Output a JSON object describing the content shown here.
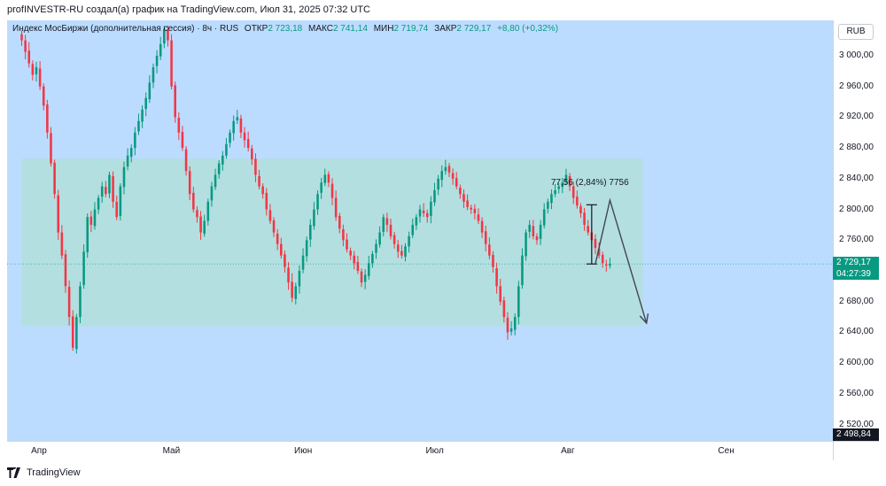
{
  "caption": "profINVESTR-RU создал(а) график на TradingView.com, Июл 31, 2025 07:32 UTC",
  "legend": {
    "symbol": "Индекс МосБиржи (дополнительная сессия) · 8ч · RUS",
    "open_label": "ОТКР",
    "open": "2 723,18",
    "high_label": "МАКС",
    "high": "2 741,14",
    "low_label": "МИН",
    "low": "2 719,74",
    "close_label": "ЗАКР",
    "close": "2 729,17",
    "change": "+8,80 (+0,32%)"
  },
  "currency": "RUB",
  "last_price": {
    "value": "2 729,17",
    "countdown": "04:27:39"
  },
  "bottom_price": "2 498,84",
  "measure_text": "77,56 (2,84%) 7756",
  "footer_brand": "TradingView",
  "colors": {
    "up": "#089981",
    "down": "#f23645",
    "background": "#bcdcff",
    "range_box": "#b2dfdb",
    "last_price": "#089981"
  },
  "chart_data": {
    "type": "candlestick",
    "title": "",
    "ylim": [
      2498.84,
      3046
    ],
    "y_ticks": [
      "3 000,00",
      "2 960,00",
      "2 920,00",
      "2 880,00",
      "2 840,00",
      "2 800,00",
      "2 760,00",
      "2 720,00",
      "2 680,00",
      "2 640,00",
      "2 600,00",
      "2 560,00",
      "2 520,00"
    ],
    "y_tick_values": [
      3000,
      2960,
      2920,
      2880,
      2840,
      2800,
      2760,
      2720,
      2680,
      2640,
      2600,
      2560,
      2520
    ],
    "x_ticks": [
      "Апр",
      "Май",
      "Июн",
      "Июл",
      "Авг",
      "Сен"
    ],
    "x_tick_index": [
      5,
      41,
      77,
      113,
      150,
      193
    ],
    "x_range": [
      -4,
      222
    ],
    "closes": [
      3020,
      3005,
      2990,
      2975,
      2985,
      2960,
      2935,
      2900,
      2860,
      2820,
      2770,
      2740,
      2700,
      2660,
      2620,
      2660,
      2700,
      2745,
      2790,
      2780,
      2800,
      2815,
      2830,
      2820,
      2845,
      2810,
      2790,
      2830,
      2855,
      2870,
      2880,
      2900,
      2915,
      2930,
      2945,
      2965,
      2985,
      3000,
      3015,
      3035,
      3020,
      2960,
      2920,
      2900,
      2880,
      2850,
      2820,
      2800,
      2790,
      2770,
      2785,
      2810,
      2830,
      2845,
      2860,
      2870,
      2885,
      2900,
      2915,
      2920,
      2900,
      2890,
      2880,
      2865,
      2845,
      2830,
      2820,
      2800,
      2785,
      2770,
      2755,
      2740,
      2725,
      2705,
      2685,
      2700,
      2720,
      2740,
      2760,
      2780,
      2800,
      2820,
      2835,
      2845,
      2835,
      2815,
      2790,
      2775,
      2760,
      2748,
      2740,
      2730,
      2720,
      2705,
      2715,
      2730,
      2742,
      2755,
      2770,
      2790,
      2780,
      2765,
      2755,
      2745,
      2740,
      2752,
      2765,
      2780,
      2790,
      2800,
      2795,
      2790,
      2810,
      2825,
      2840,
      2850,
      2855,
      2848,
      2840,
      2830,
      2820,
      2810,
      2803,
      2800,
      2795,
      2785,
      2770,
      2755,
      2740,
      2725,
      2700,
      2680,
      2660,
      2640,
      2645,
      2660,
      2700,
      2740,
      2770,
      2780,
      2765,
      2760,
      2780,
      2800,
      2810,
      2820,
      2825,
      2830,
      2835,
      2845,
      2830,
      2815,
      2805,
      2795,
      2780,
      2770,
      2760,
      2750,
      2740,
      2730,
      2727,
      2729
    ],
    "volatility": [
      6,
      6,
      7,
      6,
      6,
      6,
      5,
      5,
      5,
      5,
      6,
      6,
      7,
      7,
      5,
      5,
      5,
      6,
      6,
      6,
      6,
      5,
      5,
      5,
      5,
      5,
      5,
      5,
      6,
      6,
      6,
      6,
      6,
      7,
      6,
      6,
      6,
      6,
      6,
      5,
      5,
      5,
      6,
      6,
      5,
      5,
      5,
      5,
      6,
      6,
      5,
      5,
      5,
      5,
      5,
      5,
      5,
      5,
      6,
      6,
      6,
      6,
      6,
      6,
      6,
      5,
      5,
      5,
      5,
      5,
      5,
      5,
      6,
      6,
      7,
      6,
      6,
      6,
      6,
      6,
      6,
      6,
      5,
      5,
      5,
      6,
      6,
      5,
      5,
      5,
      5,
      5,
      5,
      5,
      6,
      6,
      5,
      5,
      5,
      5,
      6,
      5,
      5,
      5,
      5,
      5,
      5,
      5,
      5,
      5,
      6,
      6,
      6,
      6,
      6,
      6,
      6,
      5,
      5,
      5,
      5,
      5,
      5,
      5,
      5,
      5,
      6,
      6,
      6,
      6,
      6,
      6,
      6,
      6,
      6,
      6,
      6,
      6,
      5,
      5,
      5,
      5,
      5,
      5,
      5,
      5,
      5,
      5,
      5,
      5,
      5,
      5,
      5,
      5,
      5,
      5,
      5,
      5,
      5,
      5,
      5,
      5
    ],
    "range_box": {
      "x_index": [
        0,
        170
      ],
      "price": [
        2648,
        2866
      ]
    },
    "measure": {
      "x_index": 156,
      "price": [
        2729,
        2806
      ]
    },
    "projection": [
      {
        "x_index": 157,
        "price": 2729
      },
      {
        "x_index": 161,
        "price": 2812
      },
      {
        "x_index": 171,
        "price": 2652
      }
    ]
  }
}
